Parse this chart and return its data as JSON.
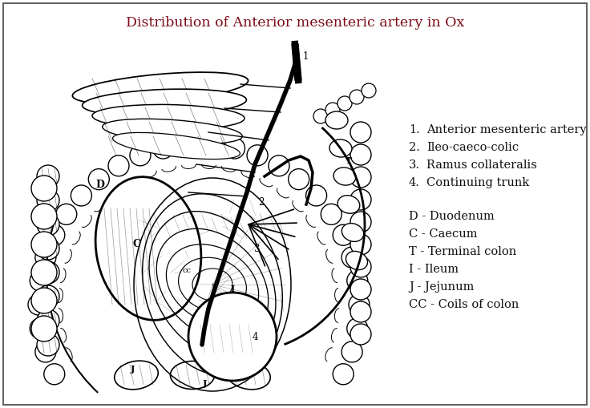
{
  "title": "Distribution of Anterior mesenteric artery in Ox",
  "title_color": "#7B0C17",
  "title_fontsize": 12.5,
  "bg_color": "#ffffff",
  "border_color": "#444444",
  "numbered_items": [
    [
      "1.",
      "Anterior mesenteric artery"
    ],
    [
      "2.",
      "Ileo-caeco-colic"
    ],
    [
      "3.",
      "Ramus collateralis"
    ],
    [
      "4.",
      "Continuing trunk"
    ]
  ],
  "labeled_items": [
    "D - Duodenum",
    "C - Caecum",
    "T - Terminal colon",
    "I - Ileum",
    "J - Jejunum",
    "CC - Coils of colon"
  ],
  "figsize": [
    7.36,
    5.09
  ],
  "dpi": 100
}
